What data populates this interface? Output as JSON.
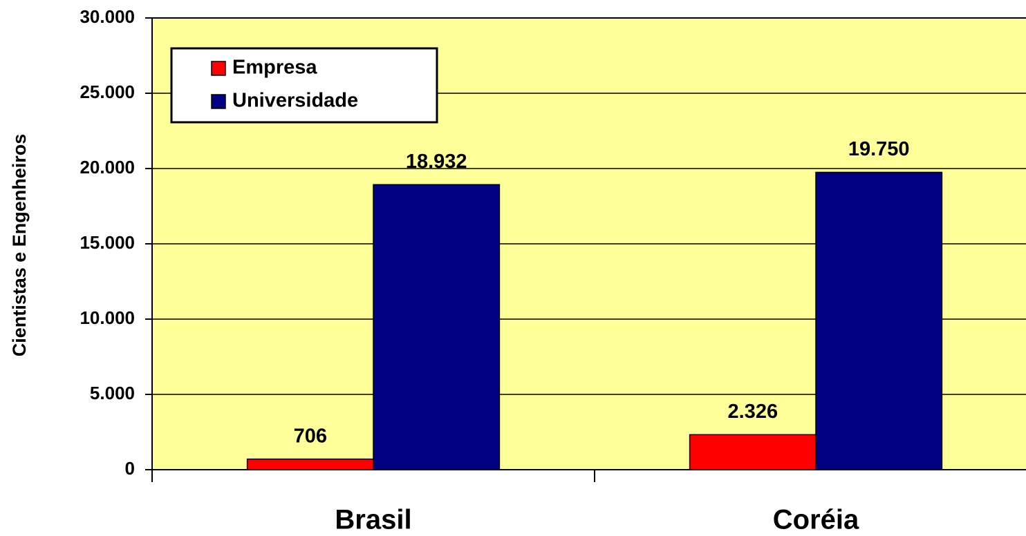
{
  "chart_data": {
    "type": "bar",
    "y_label": "Cientistas e Engenheiros",
    "categories": [
      "Brasil",
      "Coréia"
    ],
    "series": [
      {
        "name": "Empresa",
        "color": "#ff0000",
        "values": [
          706,
          2326
        ],
        "value_labels": [
          "706",
          "2.326"
        ]
      },
      {
        "name": "Universidade",
        "color": "#000080",
        "values": [
          18932,
          19750
        ],
        "value_labels": [
          "18.932",
          "19.750"
        ]
      }
    ],
    "ylim": [
      0,
      30000
    ],
    "yticks": [
      0,
      {
        "value": 5000,
        "label": "5.000"
      },
      {
        "value": 10000,
        "label": "10.000"
      },
      {
        "value": 15000,
        "label": "15.000"
      },
      {
        "value": 20000,
        "label": "20.000"
      },
      {
        "value": 25000,
        "label": "25.000"
      },
      {
        "value": 30000,
        "label": "30.000"
      }
    ],
    "grid": true,
    "legend": "top-left",
    "background": "#ffff99"
  }
}
